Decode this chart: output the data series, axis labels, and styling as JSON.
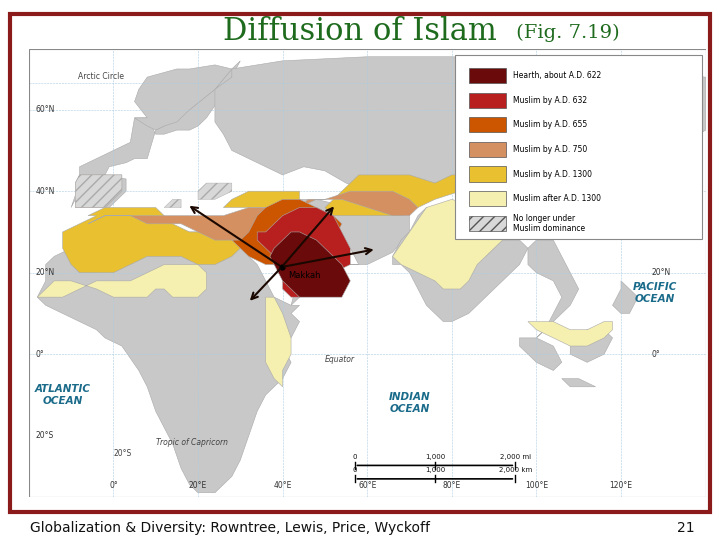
{
  "title_main": "Diffusion of Islam",
  "title_fig": " (Fig. 7.19)",
  "title_color_main": "#1e6b1e",
  "title_color_fig": "#1e6b1e",
  "title_fontsize_main": 22,
  "title_fontsize_fig": 14,
  "footer_text": "Globalization & Diversity: Rowntree, Lewis, Price, Wyckoff",
  "footer_page": "21",
  "footer_fontsize": 10,
  "border_color": "#8b1a1a",
  "border_linewidth": 3,
  "background_color": "#ffffff",
  "land_color": "#c8c8c8",
  "ocean_color": "#cce8f4",
  "legend_items": [
    {
      "label": "Hearth, about A.D. 622",
      "color": "#6b0a0a"
    },
    {
      "label": "Muslim by A.D. 632",
      "color": "#b82020"
    },
    {
      "label": "Muslim by A.D. 655",
      "color": "#cc5500"
    },
    {
      "label": "Muslim by A.D. 750",
      "color": "#d49060"
    },
    {
      "label": "Muslim by A.D. 1300",
      "color": "#e8c030"
    },
    {
      "label": "Muslim after A.D. 1300",
      "color": "#f5efb0"
    },
    {
      "label": "No longer under\nMuslim dominance",
      "color": "#d8d8d8",
      "hatch": "///"
    }
  ]
}
